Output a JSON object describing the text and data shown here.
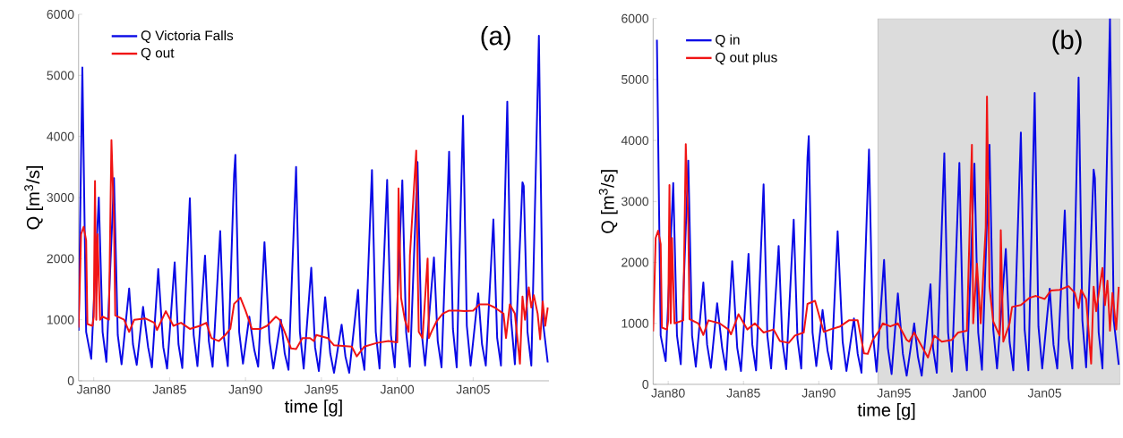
{
  "chart_data": [
    {
      "type": "line",
      "xlabel": "time [g]",
      "ylabel": "Q [m$^{3}$/s]",
      "annotations": [
        "(a)"
      ],
      "legend": "top left",
      "marker": "none",
      "line_style": "solid",
      "xlim": [
        "1979-01",
        "2010-01"
      ],
      "ylim": [
        0,
        6000
      ],
      "yticks": [
        0,
        1000,
        2000,
        3000,
        4000,
        5000,
        6000
      ],
      "xticks": [
        {
          "value": "1980-01",
          "label": "Jan80"
        },
        {
          "value": "1985-01",
          "label": "Jan85"
        },
        {
          "value": "1990-01",
          "label": "Jan90"
        },
        {
          "value": "1995-01",
          "label": "Jan95"
        },
        {
          "value": "2000-01",
          "label": "Jan00"
        },
        {
          "value": "2005-01",
          "label": "Jan05"
        }
      ],
      "series": [
        {
          "name": "Q Victoria Falls",
          "color": "#0a0ae6",
          "x": [
            "1979-01",
            "1979-04",
            "1979-07",
            "1979-11",
            "1980-05",
            "1980-08",
            "1980-11",
            "1981-05",
            "1981-08",
            "1981-11",
            "1982-05",
            "1982-08",
            "1982-11",
            "1983-04",
            "1983-08",
            "1983-11",
            "1984-04",
            "1984-08",
            "1984-11",
            "1985-05",
            "1985-08",
            "1985-11",
            "1986-05",
            "1986-08",
            "1986-11",
            "1987-05",
            "1987-08",
            "1987-11",
            "1988-05",
            "1988-08",
            "1988-11",
            "1989-04",
            "1989-05",
            "1989-08",
            "1989-11",
            "1990-04",
            "1990-08",
            "1990-11",
            "1991-04",
            "1991-08",
            "1991-11",
            "1992-05",
            "1992-08",
            "1992-11",
            "1993-05",
            "1993-08",
            "1993-11",
            "1994-05",
            "1994-08",
            "1994-11",
            "1995-04",
            "1995-08",
            "1995-11",
            "1996-05",
            "1996-08",
            "1996-11",
            "1997-06",
            "1997-08",
            "1997-11",
            "1998-05",
            "1998-08",
            "1998-11",
            "1999-05",
            "1999-08",
            "1999-11",
            "2000-05",
            "2000-08",
            "2000-11",
            "2001-05",
            "2001-08",
            "2001-11",
            "2002-06",
            "2002-09",
            "2002-12",
            "2003-06",
            "2003-09",
            "2003-12",
            "2004-05",
            "2004-08",
            "2004-11",
            "2005-05",
            "2005-08",
            "2005-11",
            "2006-05",
            "2006-08",
            "2006-11",
            "2007-04",
            "2007-07",
            "2007-10",
            "2008-04",
            "2008-05",
            "2008-08",
            "2008-11",
            "2009-05",
            "2009-08",
            "2009-12"
          ],
          "values": [
            820,
            5130,
            800,
            360,
            3000,
            800,
            310,
            3320,
            750,
            270,
            1510,
            600,
            260,
            1210,
            550,
            220,
            1830,
            550,
            200,
            1940,
            600,
            210,
            2990,
            750,
            240,
            2050,
            650,
            230,
            2450,
            700,
            240,
            3380,
            3700,
            800,
            280,
            1050,
            500,
            230,
            2270,
            650,
            200,
            1000,
            450,
            180,
            3500,
            800,
            200,
            1850,
            550,
            160,
            1370,
            450,
            130,
            920,
            400,
            130,
            1490,
            550,
            180,
            3450,
            800,
            200,
            3290,
            750,
            220,
            3280,
            800,
            230,
            3580,
            850,
            250,
            2020,
            650,
            220,
            3750,
            850,
            220,
            4340,
            900,
            250,
            1430,
            600,
            250,
            2640,
            700,
            250,
            4570,
            1000,
            270,
            3250,
            3190,
            800,
            250,
            5650,
            1000,
            300
          ]
        },
        {
          "name": "Q out",
          "color": "#f01414",
          "x": [
            "1979-01",
            "1979-02",
            "1979-03",
            "1979-05",
            "1979-07",
            "1979-08",
            "1979-12",
            "1980-01",
            "1980-02",
            "1980-03",
            "1980-04",
            "1980-06",
            "1980-08",
            "1981-01",
            "1981-03",
            "1981-05",
            "1981-06",
            "1982-01",
            "1982-05",
            "1982-09",
            "1983-06",
            "1984-01",
            "1984-03",
            "1984-10",
            "1985-04",
            "1985-10",
            "1986-05",
            "1987-01",
            "1987-06",
            "1987-10",
            "1988-04",
            "1988-09",
            "1989-01",
            "1989-04",
            "1989-09",
            "1990-01",
            "1990-06",
            "1991-01",
            "1991-06",
            "1992-01",
            "1992-04",
            "1992-08",
            "1993-01",
            "1993-05",
            "1993-10",
            "1994-04",
            "1994-07",
            "1994-09",
            "1995-06",
            "1995-11",
            "1997-01",
            "1997-05",
            "1997-11",
            "1998-09",
            "1999-06",
            "2000-01",
            "2000-02",
            "2000-04",
            "2000-07",
            "2000-10",
            "2000-11",
            "2001-04",
            "2001-05",
            "2001-06",
            "2001-09",
            "2002-01",
            "2002-02",
            "2002-04",
            "2002-08",
            "2003-01",
            "2003-06",
            "2004-01",
            "2004-06",
            "2005-01",
            "2005-06",
            "2006-01",
            "2006-06",
            "2007-01",
            "2007-03",
            "2007-06",
            "2007-10",
            "2008-02",
            "2008-04",
            "2008-06",
            "2008-09",
            "2008-11",
            "2009-01",
            "2009-04",
            "2009-06",
            "2009-08",
            "2009-10",
            "2009-12"
          ],
          "values": [
            870,
            1600,
            2400,
            2520,
            2300,
            930,
            900,
            1050,
            3270,
            1000,
            2400,
            1000,
            1050,
            1000,
            3940,
            2620,
            1070,
            1000,
            800,
            1000,
            1020,
            950,
            830,
            1140,
            900,
            950,
            850,
            900,
            950,
            700,
            650,
            750,
            850,
            1260,
            1360,
            1150,
            850,
            850,
            900,
            1050,
            1000,
            800,
            530,
            520,
            700,
            700,
            650,
            750,
            700,
            580,
            560,
            400,
            560,
            620,
            650,
            630,
            3150,
            1360,
            1000,
            800,
            2050,
            3770,
            2000,
            800,
            700,
            2000,
            700,
            800,
            970,
            1100,
            1150,
            1150,
            1140,
            1150,
            1250,
            1250,
            1200,
            1100,
            700,
            1250,
            1100,
            280,
            1380,
            1000,
            1530,
            1200,
            1400,
            1100,
            680,
            1300,
            900,
            1200
          ]
        }
      ]
    },
    {
      "type": "line",
      "xlabel": "time [g]",
      "ylabel": "Q [m$^{3}$/s]",
      "annotations": [
        "(b)"
      ],
      "legend": "top left",
      "marker": "none",
      "line_style": "solid",
      "xlim": [
        "1979-01",
        "2010-01"
      ],
      "ylim": [
        0,
        6000
      ],
      "yticks": [
        0,
        1000,
        2000,
        3000,
        4000,
        5000,
        6000
      ],
      "xticks": [
        {
          "value": "1980-01",
          "label": "Jan80"
        },
        {
          "value": "1985-01",
          "label": "Jan85"
        },
        {
          "value": "1990-01",
          "label": "Jan90"
        },
        {
          "value": "1995-01",
          "label": "Jan95"
        },
        {
          "value": "2000-01",
          "label": "Jan00"
        },
        {
          "value": "2005-01",
          "label": "Jan05"
        }
      ],
      "bands": [
        {
          "axis": "x",
          "from": "1993-12",
          "to": "2010-01",
          "color": "#dcdcdc"
        }
      ],
      "series": [
        {
          "name": "Q in",
          "color": "#0a0ae6",
          "x": [
            "1979-04",
            "1979-07",
            "1979-11",
            "1980-05",
            "1980-08",
            "1980-11",
            "1981-05",
            "1981-08",
            "1981-11",
            "1982-05",
            "1982-08",
            "1982-11",
            "1983-04",
            "1983-08",
            "1983-11",
            "1984-04",
            "1984-08",
            "1984-11",
            "1985-05",
            "1985-08",
            "1985-11",
            "1986-05",
            "1986-08",
            "1986-11",
            "1987-05",
            "1987-08",
            "1987-11",
            "1988-05",
            "1988-08",
            "1988-11",
            "1989-04",
            "1989-05",
            "1989-08",
            "1989-11",
            "1990-04",
            "1990-08",
            "1990-11",
            "1991-04",
            "1991-08",
            "1991-11",
            "1992-05",
            "1992-08",
            "1992-11",
            "1993-05",
            "1993-08",
            "1993-11",
            "1994-05",
            "1994-08",
            "1994-11",
            "1995-04",
            "1995-08",
            "1995-11",
            "1996-05",
            "1996-08",
            "1996-11",
            "1997-06",
            "1997-08",
            "1997-11",
            "1998-05",
            "1998-08",
            "1998-11",
            "1999-05",
            "1999-08",
            "1999-11",
            "2000-05",
            "2000-08",
            "2000-11",
            "2001-05",
            "2001-08",
            "2001-11",
            "2002-06",
            "2002-09",
            "2002-12",
            "2003-06",
            "2003-09",
            "2003-12",
            "2004-05",
            "2004-08",
            "2004-11",
            "2005-05",
            "2005-08",
            "2005-11",
            "2006-05",
            "2006-08",
            "2006-11",
            "2007-04",
            "2007-07",
            "2007-10",
            "2008-04",
            "2008-05",
            "2008-08",
            "2008-11",
            "2009-05",
            "2009-08",
            "2009-12"
          ],
          "values": [
            5650,
            800,
            380,
            3300,
            800,
            330,
            3670,
            800,
            290,
            1670,
            650,
            270,
            1330,
            600,
            240,
            2020,
            600,
            220,
            2140,
            650,
            230,
            3280,
            800,
            260,
            2270,
            700,
            250,
            2700,
            750,
            260,
            3720,
            4070,
            850,
            300,
            1220,
            550,
            250,
            2510,
            700,
            220,
            1080,
            500,
            190,
            3850,
            850,
            210,
            2040,
            600,
            170,
            1490,
            500,
            140,
            1000,
            450,
            140,
            1640,
            600,
            190,
            3790,
            850,
            210,
            3630,
            800,
            230,
            3620,
            850,
            240,
            3930,
            900,
            260,
            2220,
            700,
            230,
            4130,
            900,
            230,
            4780,
            950,
            260,
            1570,
            650,
            260,
            2850,
            750,
            260,
            5030,
            1050,
            280,
            3520,
            3380,
            850,
            260,
            6000,
            1050,
            320
          ]
        },
        {
          "name": "Q out plus",
          "color": "#f01414",
          "x": [
            "1979-01",
            "1979-02",
            "1979-03",
            "1979-05",
            "1979-07",
            "1979-08",
            "1979-12",
            "1980-01",
            "1980-02",
            "1980-03",
            "1980-04",
            "1980-06",
            "1981-01",
            "1981-03",
            "1981-05",
            "1981-06",
            "1982-01",
            "1982-05",
            "1982-09",
            "1983-06",
            "1984-01",
            "1984-03",
            "1984-09",
            "1985-04",
            "1985-10",
            "1986-05",
            "1987-01",
            "1987-06",
            "1988-01",
            "1988-06",
            "1989-01",
            "1989-04",
            "1989-10",
            "1990-03",
            "1990-05",
            "1990-10",
            "1991-06",
            "1992-01",
            "1992-08",
            "1993-01",
            "1993-04",
            "1993-08",
            "1994-01",
            "1994-04",
            "1994-10",
            "1995-04",
            "1995-11",
            "1996-01",
            "1996-05",
            "1997-04",
            "1997-09",
            "1998-03",
            "1998-11",
            "1999-04",
            "1999-11",
            "2000-03",
            "2000-04",
            "2000-07",
            "2000-10",
            "2001-02",
            "2001-03",
            "2001-05",
            "2001-08",
            "2002-01",
            "2002-02",
            "2002-04",
            "2002-09",
            "2002-11",
            "2003-06",
            "2004-01",
            "2004-06",
            "2005-01",
            "2005-06",
            "2006-01",
            "2006-08",
            "2007-01",
            "2007-04",
            "2007-06",
            "2007-10",
            "2008-02",
            "2008-04",
            "2008-06",
            "2008-11",
            "2009-01",
            "2009-03",
            "2009-05",
            "2009-07",
            "2009-10",
            "2009-12"
          ],
          "values": [
            870,
            1600,
            2400,
            2520,
            2300,
            930,
            900,
            1050,
            3270,
            1000,
            2400,
            1000,
            1050,
            3940,
            2620,
            1070,
            1000,
            810,
            1050,
            1000,
            900,
            820,
            1150,
            900,
            1000,
            850,
            900,
            710,
            680,
            800,
            850,
            1320,
            1370,
            1000,
            860,
            900,
            950,
            1050,
            1050,
            510,
            500,
            730,
            880,
            1000,
            950,
            1000,
            730,
            700,
            850,
            440,
            800,
            700,
            730,
            850,
            880,
            3930,
            1000,
            1980,
            1000,
            2570,
            4720,
            1600,
            1030,
            800,
            2530,
            700,
            1000,
            1270,
            1300,
            1420,
            1450,
            1400,
            1540,
            1550,
            1610,
            1500,
            1250,
            1550,
            1400,
            340,
            1600,
            1200,
            1910,
            1300,
            1700,
            880,
            1500,
            900,
            1600
          ]
        }
      ]
    }
  ]
}
